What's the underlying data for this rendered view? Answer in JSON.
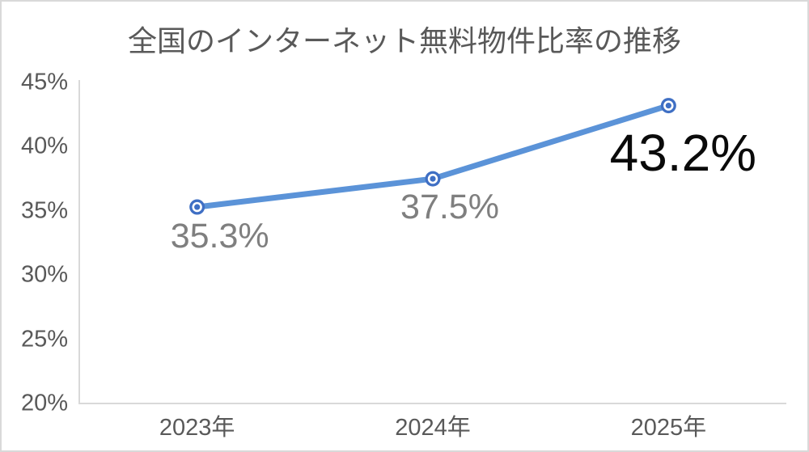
{
  "chart": {
    "title": "全国のインターネット無料物件比率の推移"
  },
  "chart_data": {
    "type": "line",
    "title": "全国のインターネット無料物件比率の推移",
    "categories": [
      "2023年",
      "2024年",
      "2025年"
    ],
    "series": [
      {
        "name": "インターネット無料物件比率",
        "values": [
          35.3,
          37.5,
          43.2
        ]
      }
    ],
    "point_labels": [
      "35.3%",
      "37.5%",
      "43.2%"
    ],
    "xlabel": "",
    "ylabel": "",
    "ylim": [
      20,
      45
    ],
    "y_ticks": [
      "45%",
      "40%",
      "35%",
      "30%",
      "25%",
      "20%"
    ],
    "y_tick_values": [
      45,
      40,
      35,
      30,
      25,
      20
    ],
    "grid": false,
    "legend_position": "none",
    "colors": {
      "line": "#5b93d8",
      "marker": "#3f6fc4",
      "marker_ring": "#ffffff",
      "axis": "#d9d9d9",
      "tick_text": "#595959",
      "title_text": "#595959",
      "label_gray": "#7f7f7f",
      "label_emphasis": "#0a0a0a"
    }
  }
}
